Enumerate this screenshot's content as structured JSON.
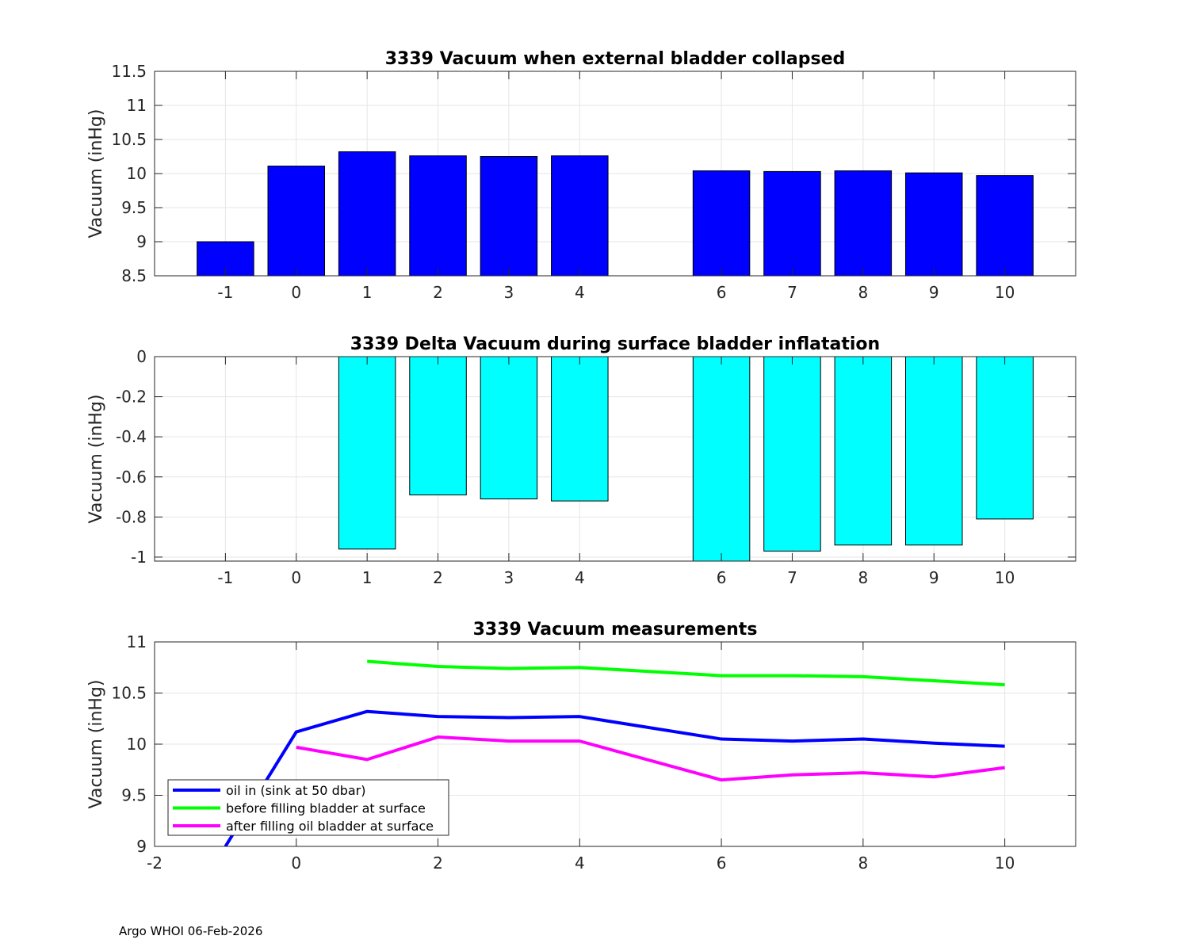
{
  "footer": "Argo WHOI 06-Feb-2026",
  "colors": {
    "bar1": "#0000ff",
    "bar2": "#00ffff",
    "oil_in": "#0000ff",
    "before": "#00ff00",
    "after": "#ff00ff",
    "grid": "#e6e6e6",
    "axis": "#262626"
  },
  "chart_data": [
    {
      "type": "bar",
      "title": "3339 Vacuum when external bladder collapsed",
      "xlabel": "",
      "ylabel": "Vacuum (inHg)",
      "categories": [
        -1,
        0,
        1,
        2,
        3,
        4,
        6,
        7,
        8,
        9,
        10
      ],
      "values": [
        9.0,
        10.11,
        10.32,
        10.26,
        10.25,
        10.26,
        10.04,
        10.03,
        10.04,
        10.01,
        9.97
      ],
      "xlim": [
        -2,
        11
      ],
      "ylim": [
        8.5,
        11.5
      ],
      "xticks": [
        -1,
        0,
        1,
        2,
        3,
        4,
        6,
        7,
        8,
        9,
        10
      ],
      "yticks": [
        8.5,
        9,
        9.5,
        10,
        10.5,
        11,
        11.5
      ],
      "ytick_labels": [
        "8.5",
        "9",
        "9.5",
        "10",
        "10.5",
        "11",
        "11.5"
      ],
      "grid": true
    },
    {
      "type": "bar",
      "title": "3339 Delta Vacuum during surface bladder inflatation",
      "xlabel": "",
      "ylabel": "Vacuum (inHg)",
      "categories": [
        1,
        2,
        3,
        4,
        6,
        7,
        8,
        9,
        10
      ],
      "values": [
        -0.96,
        -0.69,
        -0.71,
        -0.72,
        -1.02,
        -0.97,
        -0.94,
        -0.94,
        -0.81
      ],
      "xlim": [
        -2,
        11
      ],
      "ylim": [
        -1.02,
        0
      ],
      "xticks": [
        -1,
        0,
        1,
        2,
        3,
        4,
        6,
        7,
        8,
        9,
        10
      ],
      "yticks": [
        -1,
        -0.8,
        -0.6,
        -0.4,
        -0.2,
        0
      ],
      "ytick_labels": [
        "-1",
        "-0.8",
        "-0.6",
        "-0.4",
        "-0.2",
        "0"
      ],
      "grid": true
    },
    {
      "type": "line",
      "title": "3339 Vacuum measurements",
      "xlabel": "",
      "ylabel": "Vacuum (inHg)",
      "xlim": [
        -2,
        11
      ],
      "ylim": [
        9,
        11
      ],
      "xticks": [
        -2,
        0,
        2,
        4,
        6,
        8,
        10
      ],
      "yticks": [
        9,
        9.5,
        10,
        10.5,
        11
      ],
      "ytick_labels": [
        "9",
        "9.5",
        "10",
        "10.5",
        "11"
      ],
      "grid": true,
      "legend_position": "bottom-left",
      "series": [
        {
          "name": "oil in (sink at 50 dbar)",
          "color_key": "oil_in",
          "x": [
            -1,
            0,
            1,
            2,
            3,
            4,
            6,
            7,
            8,
            9,
            10
          ],
          "y": [
            9.0,
            10.12,
            10.32,
            10.27,
            10.26,
            10.27,
            10.05,
            10.03,
            10.05,
            10.01,
            9.98
          ]
        },
        {
          "name": "before filling bladder at surface",
          "color_key": "before",
          "x": [
            1,
            2,
            3,
            4,
            6,
            7,
            8,
            9,
            10
          ],
          "y": [
            10.81,
            10.76,
            10.74,
            10.75,
            10.67,
            10.67,
            10.66,
            10.62,
            10.58
          ]
        },
        {
          "name": "after filling oil bladder at surface",
          "color_key": "after",
          "x": [
            0,
            1,
            2,
            3,
            4,
            6,
            7,
            8,
            9,
            10
          ],
          "y": [
            9.97,
            9.85,
            10.07,
            10.03,
            10.03,
            9.65,
            9.7,
            9.72,
            9.68,
            9.77
          ]
        }
      ]
    }
  ]
}
